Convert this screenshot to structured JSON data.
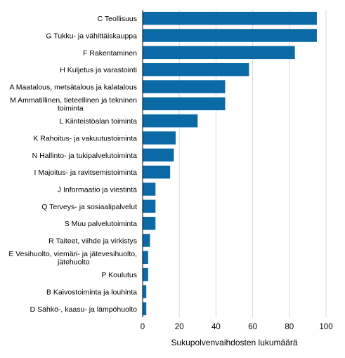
{
  "chart_data": {
    "type": "bar",
    "orientation": "horizontal",
    "xlabel": "Sukupolvenvaihdosten lukumäärä",
    "xlim": [
      0,
      100
    ],
    "xticks": [
      0,
      20,
      40,
      60,
      80,
      100
    ],
    "grid": "vertical",
    "legend": "none",
    "bar_color": "#0b6aa6",
    "categories": [
      [
        "C Teollisuus"
      ],
      [
        "G Tukku- ja vähittäiskauppa"
      ],
      [
        "F Rakentaminen"
      ],
      [
        "H Kuljetus ja varastointi"
      ],
      [
        "A Maatalous, metsätalous ja kalatalous"
      ],
      [
        "M Ammatillinen, tieteellinen ja tekninen",
        "toiminta"
      ],
      [
        "L Kiinteistöalan toiminta"
      ],
      [
        "K Rahoitus- ja vakuutustoiminta"
      ],
      [
        "N Hallinto- ja tukipalvelutoiminta"
      ],
      [
        "I Majoitus- ja ravitsemistoiminta"
      ],
      [
        "J Informaatio ja viestintä"
      ],
      [
        "Q Terveys- ja sosiaalipalvelut"
      ],
      [
        "S Muu palvelutoiminta"
      ],
      [
        "R Taiteet, viihde ja virkistys"
      ],
      [
        "E Vesihuolto, viemäri- ja jätevesihuolto,",
        "jätehuolto"
      ],
      [
        "P Koulutus"
      ],
      [
        "B Kaivostoiminta ja louhinta"
      ],
      [
        "D Sähkö-, kaasu- ja lämpöhuolto"
      ]
    ],
    "values": [
      95,
      95,
      83,
      58,
      45,
      45,
      30,
      18,
      17,
      15,
      7,
      7,
      7,
      4,
      3,
      3,
      2,
      2
    ]
  }
}
